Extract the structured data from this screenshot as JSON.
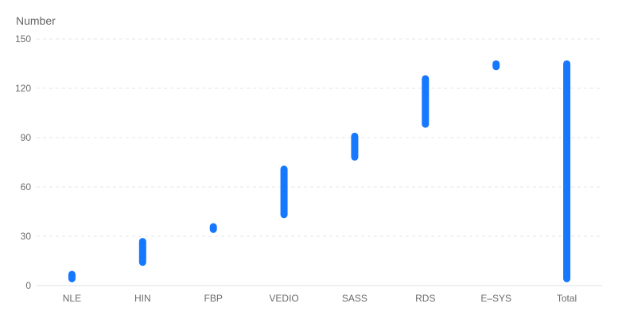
{
  "chart_data": {
    "type": "bar",
    "subtype": "range",
    "ylabel": "Number",
    "categories": [
      "NLE",
      "HIN",
      "FBP",
      "VEDIO",
      "SASS",
      "RDS",
      "E–SYS",
      "Total"
    ],
    "series": [
      {
        "ranges": [
          [
            2,
            9
          ],
          [
            12,
            29
          ],
          [
            32,
            38
          ],
          [
            41,
            73
          ],
          [
            76,
            93
          ],
          [
            96,
            128
          ],
          [
            131,
            137
          ],
          [
            2,
            137
          ]
        ]
      }
    ],
    "yticks": [
      0,
      30,
      60,
      90,
      120,
      150
    ],
    "ylim": [
      0,
      150
    ],
    "grid": true,
    "legend": "none",
    "bar_color": "#1677ff"
  }
}
